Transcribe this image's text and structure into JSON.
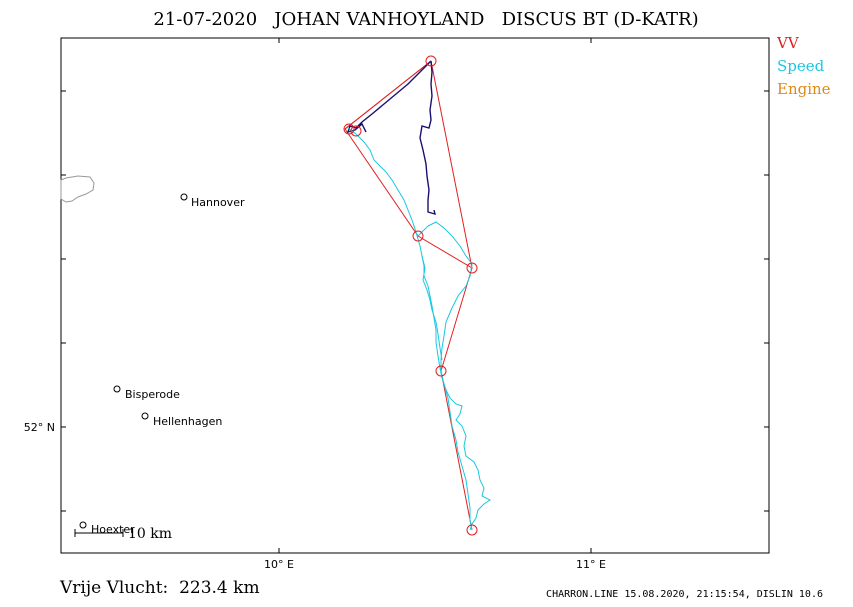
{
  "title": "21-07-2020   JOHAN VANHOYLAND   DISCUS BT (D-KATR)",
  "legend": [
    {
      "label": "VV",
      "color": "#e02020"
    },
    {
      "label": "Speed",
      "color": "#18c8e0"
    },
    {
      "label": "Engine",
      "color": "#e08818"
    }
  ],
  "axes": {
    "x_ticks": [
      "10° E",
      "11° E"
    ],
    "y_ticks": [
      "52° N"
    ]
  },
  "cities": [
    {
      "name": "Hannover"
    },
    {
      "name": "Bisperode"
    },
    {
      "name": "Hellenhagen"
    },
    {
      "name": "Hoexter"
    }
  ],
  "scale_bar": {
    "label": "10 km"
  },
  "footer": {
    "distance": "Vrije Vlucht:  223.4 km",
    "credit": "CHARRON.LINE 15.08.2020, 21:15:54, DISLIN 10.6"
  },
  "colors": {
    "task_line": "#e02020",
    "track_speed": "#18c8e0",
    "track_dark": "#1a1070",
    "frame": "#000000",
    "coastline": "#999999"
  }
}
